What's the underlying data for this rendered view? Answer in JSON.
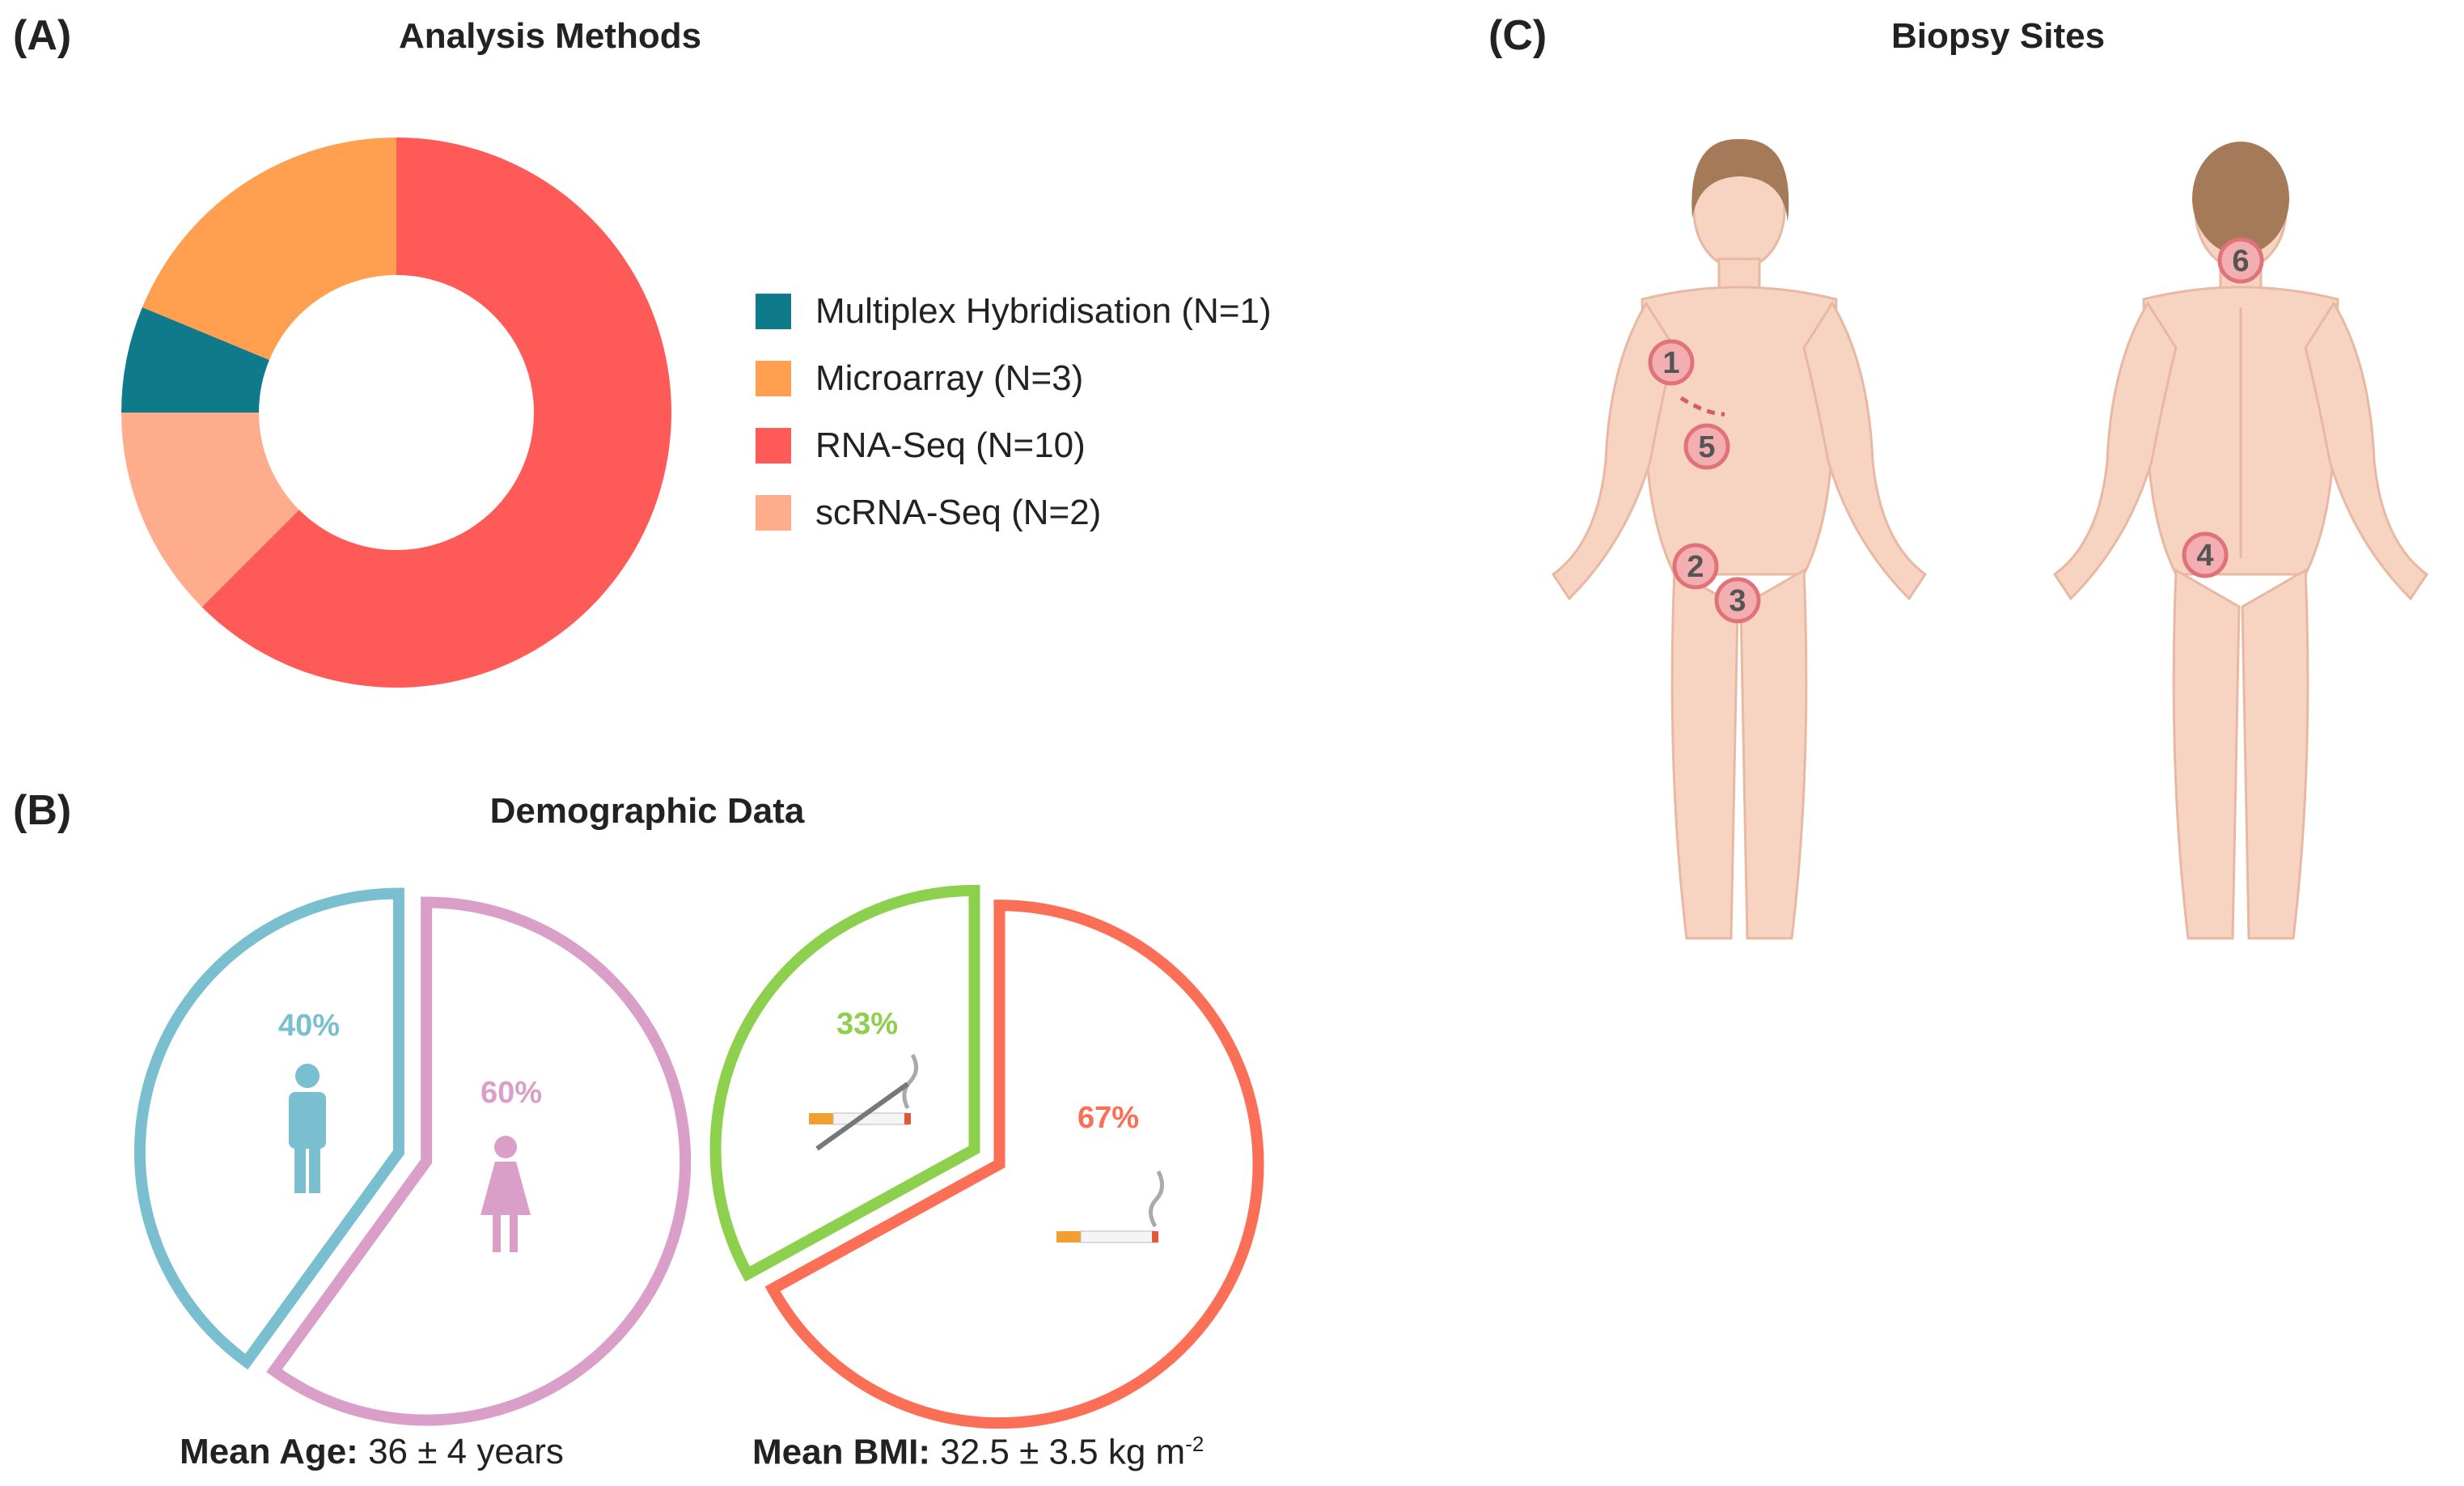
{
  "panelA": {
    "letter": "(A)",
    "title": "Analysis Methods"
  },
  "panelB": {
    "letter": "(B)",
    "title": "Demographic Data",
    "age_label": "Mean Age:",
    "age_value": "36 ± 4 years",
    "bmi_label": "Mean BMI:",
    "bmi_value": "32.5 ± 3.5 kg m",
    "bmi_sup": "-2"
  },
  "panelC": {
    "letter": "(C)",
    "title": "Biopsy Sites",
    "site_markers": [
      "1",
      "2",
      "3",
      "4",
      "5",
      "6"
    ]
  },
  "colors": {
    "teal": "#0f7a8a",
    "orange": "#ff9f4f",
    "red": "#fe5a58",
    "salmon": "#ffac8d",
    "male": "#79bfcf",
    "female": "#d99fc8",
    "nonsmoker": "#8dd04e",
    "smoker": "#fb6f57",
    "skin": "#f7d4c2",
    "hair": "#a47a58"
  },
  "chart_data": [
    {
      "type": "pie",
      "title": "Analysis Methods",
      "categories": [
        "Multiplex Hybridisation (N=1)",
        "Microarray (N=3)",
        "RNA-Seq (N=10)",
        "scRNA-Seq (N=2)"
      ],
      "values": [
        1,
        3,
        10,
        2
      ],
      "donut": true,
      "legend": "right"
    },
    {
      "type": "pie",
      "title": "",
      "categories": [
        "male",
        "female"
      ],
      "values": [
        40,
        60
      ],
      "labels": [
        "40%",
        "60%"
      ],
      "icons": [
        "male-icon",
        "female-icon"
      ]
    },
    {
      "type": "pie",
      "title": "",
      "categories": [
        "non-smoker",
        "smoker"
      ],
      "values": [
        33,
        67
      ],
      "labels": [
        "33%",
        "67%"
      ],
      "icons": [
        "no-smoking-icon",
        "cigarette-icon"
      ]
    }
  ]
}
